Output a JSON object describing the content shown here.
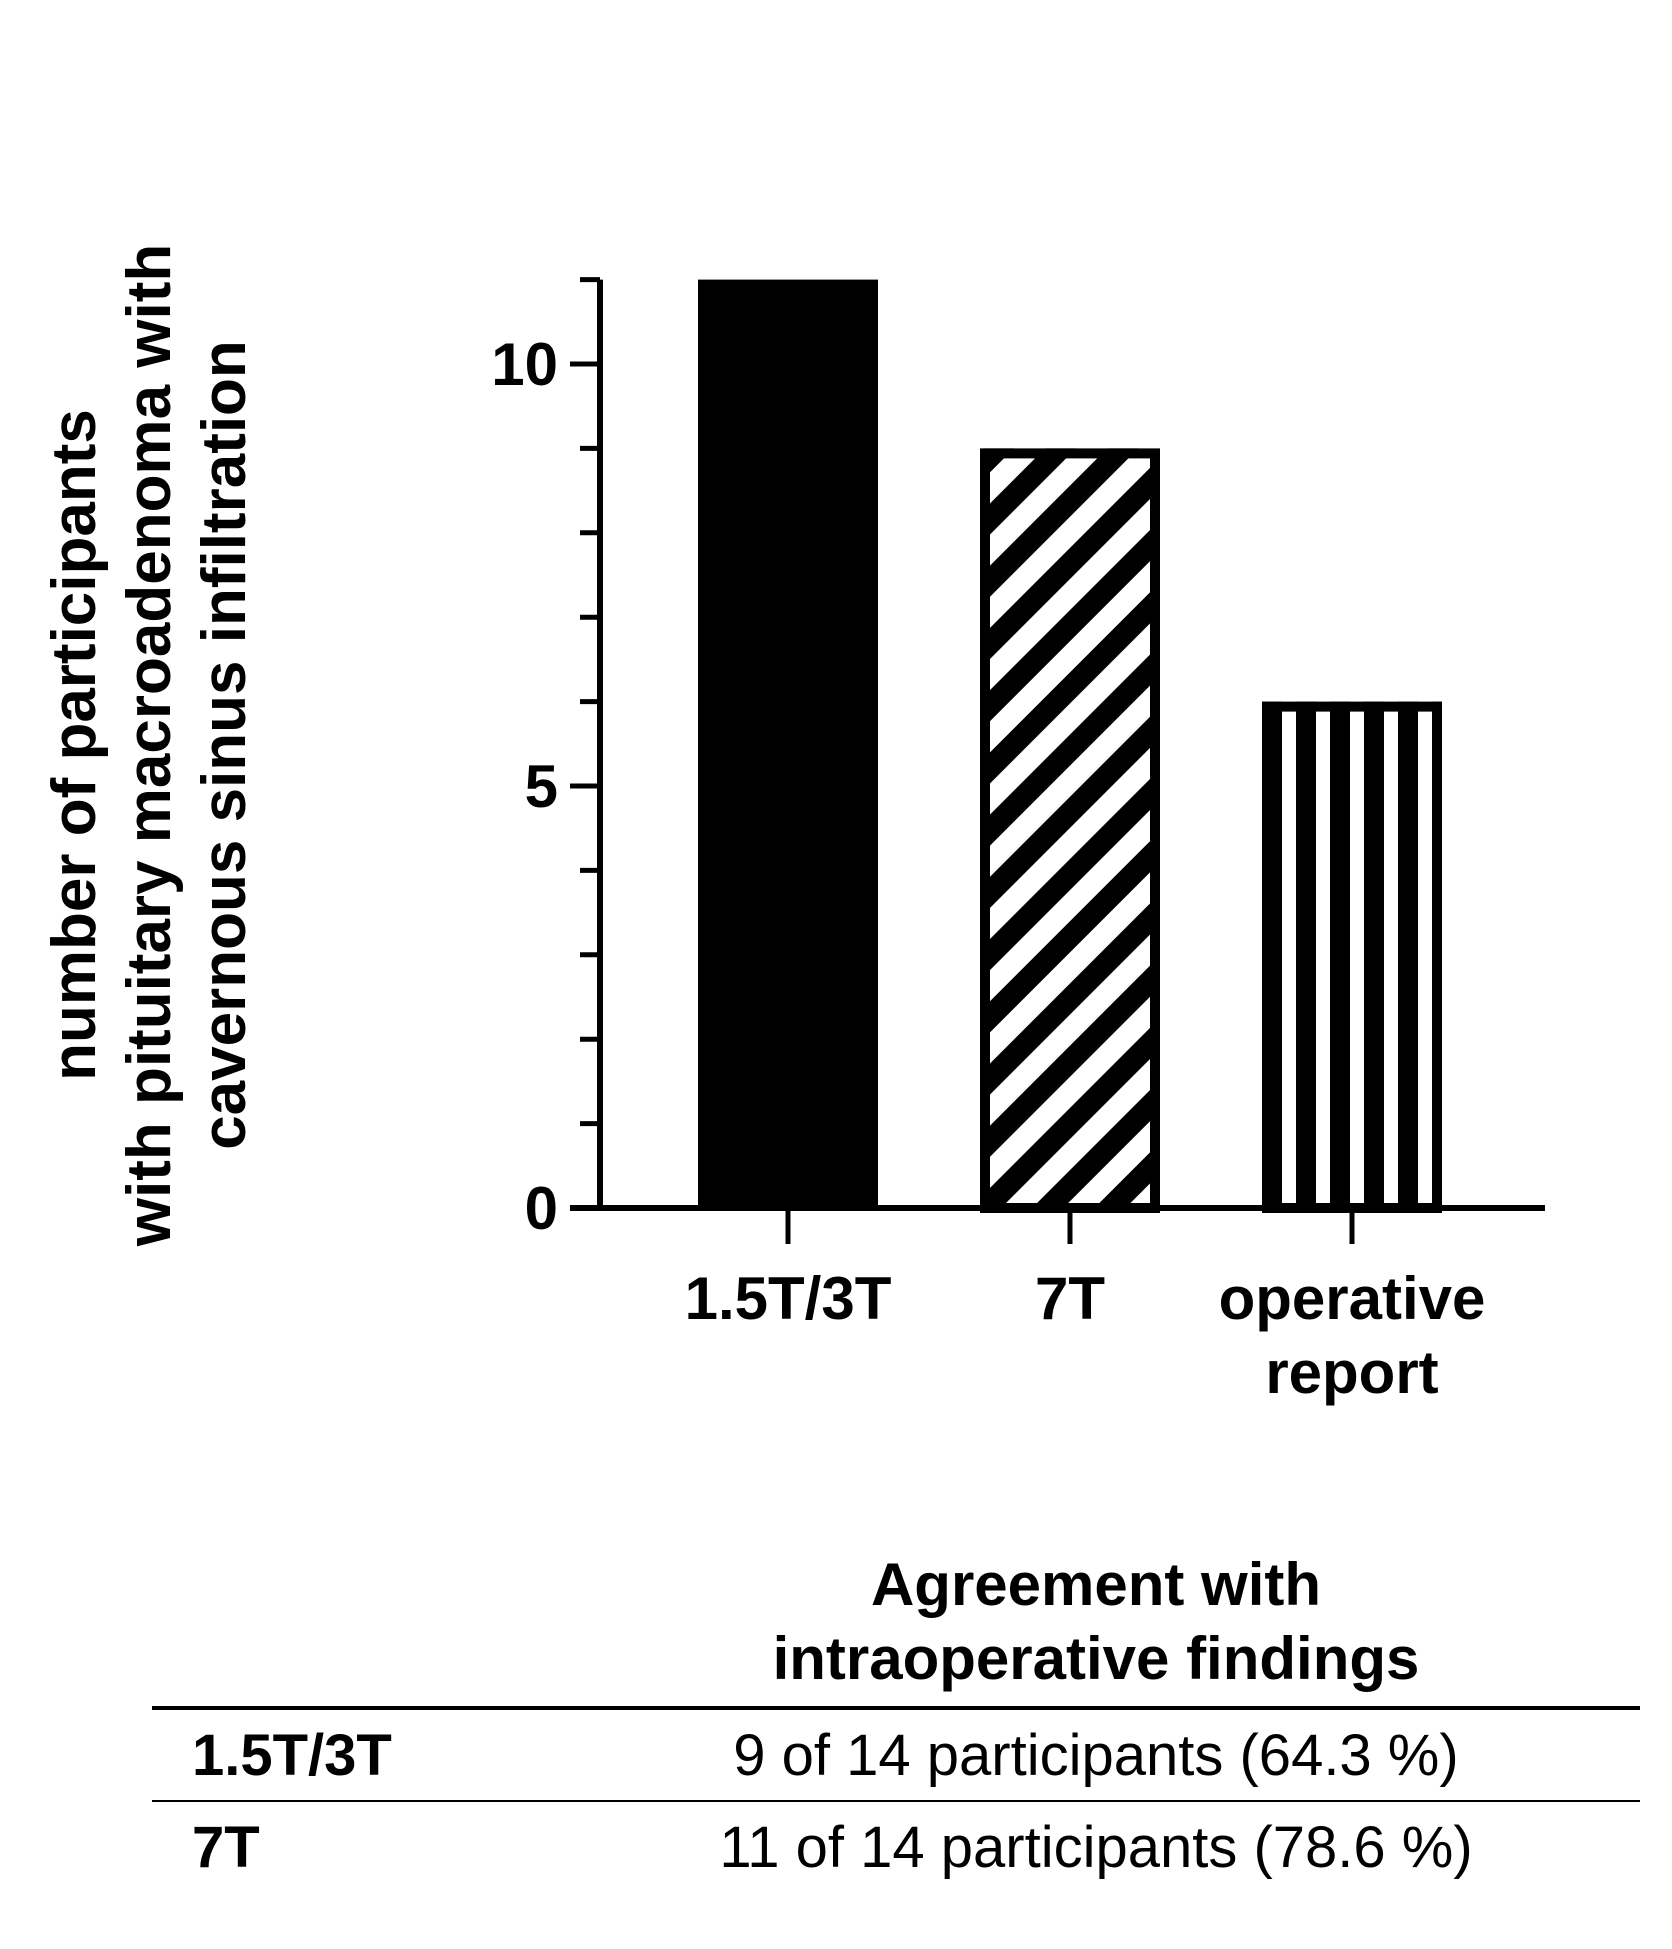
{
  "chart_data": {
    "type": "bar",
    "categories": [
      [
        "1.5T/3T"
      ],
      [
        "7T"
      ],
      [
        "operative",
        "report"
      ]
    ],
    "values": [
      11,
      9,
      6
    ],
    "patterns": [
      "solid",
      "diagonal-stripes",
      "vertical-stripes"
    ],
    "ylabel": [
      "number of participants",
      "with pituitary macroadenoma with",
      "cavernous sinus infiltration"
    ],
    "yticks": [
      0,
      5,
      10
    ],
    "ylim": [
      0,
      11
    ],
    "grid": false,
    "colors": {
      "bar": "#000000",
      "background": "#ffffff"
    }
  },
  "table": {
    "header": [
      "Agreement with",
      "intraoperative findings"
    ],
    "rows": [
      {
        "label": "1.5T/3T",
        "value": "9 of 14 participants (64.3 %)"
      },
      {
        "label": "7T",
        "value": "11 of 14 participants (78.6 %)"
      }
    ]
  }
}
